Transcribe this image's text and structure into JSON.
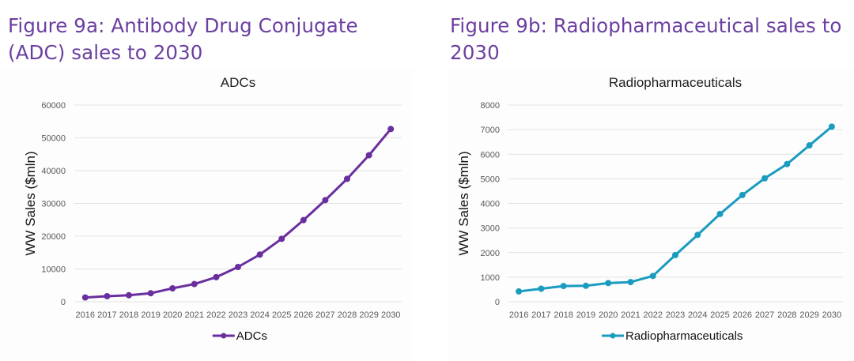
{
  "figures": {
    "a": {
      "title": "Figure 9a: Antibody Drug Conjugate (ADC) sales to 2030"
    },
    "b": {
      "title": "Figure 9b: Radiopharmaceutical sales to 2030"
    }
  },
  "colors": {
    "title": "#6b3fa0",
    "adc_series": "#6a2f9e",
    "radio_series": "#1a9cbf"
  },
  "chart_data": [
    {
      "type": "line",
      "title": "ADCs",
      "xlabel": "",
      "ylabel": "WW Sales ($mln)",
      "categories": [
        "2016",
        "2017",
        "2018",
        "2019",
        "2020",
        "2021",
        "2022",
        "2023",
        "2024",
        "2025",
        "2026",
        "2027",
        "2028",
        "2029",
        "2030"
      ],
      "series": [
        {
          "name": "ADCs",
          "color": "#6a2f9e",
          "values": [
            1300,
            1700,
            2000,
            2600,
            4100,
            5400,
            7500,
            10600,
            14400,
            19200,
            24900,
            31000,
            37500,
            44700,
            52700
          ]
        }
      ],
      "ylim": [
        0,
        60000
      ],
      "yticks": [
        0,
        10000,
        20000,
        30000,
        40000,
        50000,
        60000
      ],
      "grid": true,
      "legend": "bottom"
    },
    {
      "type": "line",
      "title": "Radiopharmaceuticals",
      "xlabel": "",
      "ylabel": "WW Sales ($mln)",
      "categories": [
        "2016",
        "2017",
        "2018",
        "2019",
        "2020",
        "2021",
        "2022",
        "2023",
        "2024",
        "2025",
        "2026",
        "2027",
        "2028",
        "2029",
        "2030"
      ],
      "series": [
        {
          "name": "Radiopharmaceuticals",
          "color": "#1a9cbf",
          "values": [
            420,
            530,
            640,
            650,
            760,
            800,
            1050,
            1900,
            2720,
            3570,
            4340,
            5020,
            5600,
            6360,
            7120
          ]
        }
      ],
      "ylim": [
        0,
        8000
      ],
      "yticks": [
        0,
        1000,
        2000,
        3000,
        4000,
        5000,
        6000,
        7000,
        8000
      ],
      "grid": true,
      "legend": "bottom"
    }
  ]
}
